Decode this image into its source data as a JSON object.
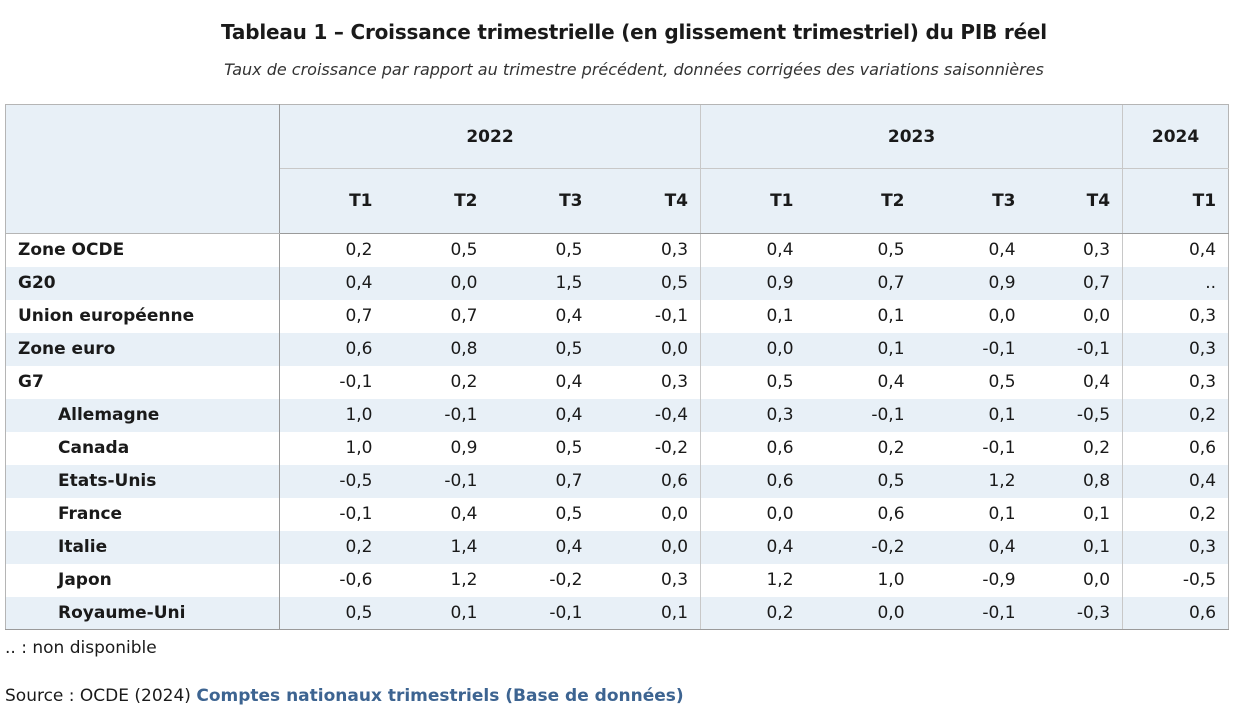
{
  "title": "Tableau 1 – Croissance trimestrielle (en glissement trimestriel) du PIB réel",
  "subtitle": "Taux de croissance par rapport au trimestre précédent, données corrigées des variations saisonnières",
  "years": [
    {
      "label": "2022",
      "quarters": [
        "T1",
        "T2",
        "T3",
        "T4"
      ]
    },
    {
      "label": "2023",
      "quarters": [
        "T1",
        "T2",
        "T3",
        "T4"
      ]
    },
    {
      "label": "2024",
      "quarters": [
        "T1"
      ]
    }
  ],
  "rows": [
    {
      "label": "Zone OCDE",
      "indent": false,
      "values": [
        "0,2",
        "0,5",
        "0,5",
        "0,3",
        "0,4",
        "0,5",
        "0,4",
        "0,3",
        "0,4"
      ]
    },
    {
      "label": "G20",
      "indent": false,
      "values": [
        "0,4",
        "0,0",
        "1,5",
        "0,5",
        "0,9",
        "0,7",
        "0,9",
        "0,7",
        ".."
      ]
    },
    {
      "label": "Union européenne",
      "indent": false,
      "values": [
        "0,7",
        "0,7",
        "0,4",
        "-0,1",
        "0,1",
        "0,1",
        "0,0",
        "0,0",
        "0,3"
      ]
    },
    {
      "label": "Zone euro",
      "indent": false,
      "values": [
        "0,6",
        "0,8",
        "0,5",
        "0,0",
        "0,0",
        "0,1",
        "-0,1",
        "-0,1",
        "0,3"
      ]
    },
    {
      "label": "G7",
      "indent": false,
      "values": [
        "-0,1",
        "0,2",
        "0,4",
        "0,3",
        "0,5",
        "0,4",
        "0,5",
        "0,4",
        "0,3"
      ]
    },
    {
      "label": "Allemagne",
      "indent": true,
      "values": [
        "1,0",
        "-0,1",
        "0,4",
        "-0,4",
        "0,3",
        "-0,1",
        "0,1",
        "-0,5",
        "0,2"
      ]
    },
    {
      "label": "Canada",
      "indent": true,
      "values": [
        "1,0",
        "0,9",
        "0,5",
        "-0,2",
        "0,6",
        "0,2",
        "-0,1",
        "0,2",
        "0,6"
      ]
    },
    {
      "label": "Etats-Unis",
      "indent": true,
      "values": [
        "-0,5",
        "-0,1",
        "0,7",
        "0,6",
        "0,6",
        "0,5",
        "1,2",
        "0,8",
        "0,4"
      ]
    },
    {
      "label": "France",
      "indent": true,
      "values": [
        "-0,1",
        "0,4",
        "0,5",
        "0,0",
        "0,0",
        "0,6",
        "0,1",
        "0,1",
        "0,2"
      ]
    },
    {
      "label": "Italie",
      "indent": true,
      "values": [
        "0,2",
        "1,4",
        "0,4",
        "0,0",
        "0,4",
        "-0,2",
        "0,4",
        "0,1",
        "0,3"
      ]
    },
    {
      "label": "Japon",
      "indent": true,
      "values": [
        "-0,6",
        "1,2",
        "-0,2",
        "0,3",
        "1,2",
        "1,0",
        "-0,9",
        "0,0",
        "-0,5"
      ]
    },
    {
      "label": "Royaume-Uni",
      "indent": true,
      "values": [
        "0,5",
        "0,1",
        "-0,1",
        "0,1",
        "0,2",
        "0,0",
        "-0,1",
        "-0,3",
        "0,6"
      ]
    }
  ],
  "footnote": ".. : non disponible",
  "source": {
    "prefix": "Source : OCDE (2024) ",
    "link_text": "Comptes nationaux trimestriels (Base de données)"
  },
  "colors": {
    "header_bg": "#e8f0f7",
    "stripe_bg": "#e8f0f7",
    "link": "#3d6491"
  }
}
